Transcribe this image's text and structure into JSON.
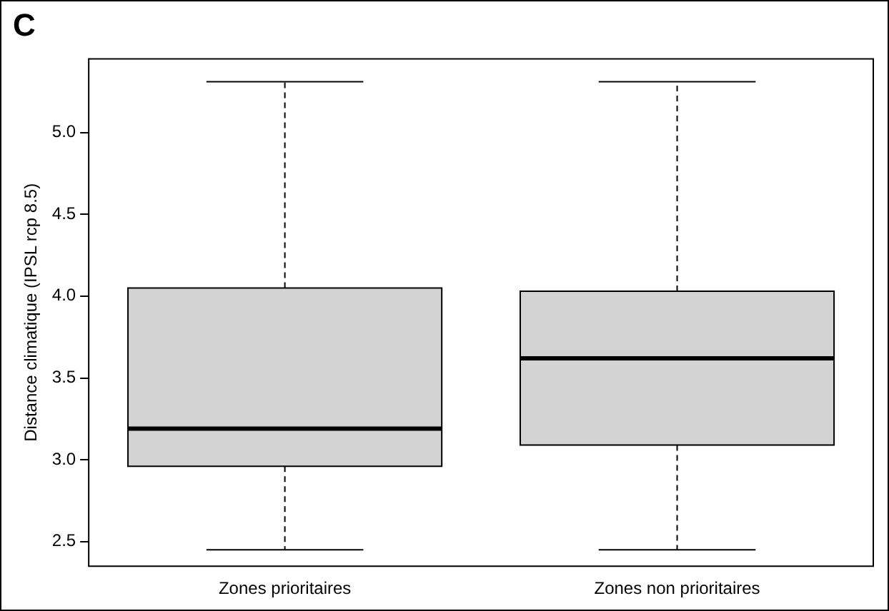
{
  "chart_data": {
    "type": "box",
    "annotations": [
      "C"
    ],
    "ylabel": "Distance climatique (IPSL rcp 8.5)",
    "categories": [
      "Zones prioritaires",
      "Zones non prioritaires"
    ],
    "color": "#d3d3d3",
    "boxes": [
      {
        "low": 2.45,
        "q1": 2.96,
        "median": 3.19,
        "q3": 4.05,
        "high": 5.31
      },
      {
        "low": 2.45,
        "q1": 3.09,
        "median": 3.62,
        "q3": 4.03,
        "high": 5.31
      }
    ],
    "ylim": [
      2.35,
      5.45
    ],
    "yticks": [
      {
        "value": 2.5,
        "label": "2.5"
      },
      {
        "value": 3,
        "label": "3.0"
      },
      {
        "value": 3.5,
        "label": "3.5"
      },
      {
        "value": 4,
        "label": "4.0"
      },
      {
        "value": 4.5,
        "label": "4.5"
      },
      {
        "value": 5,
        "label": "5.0"
      }
    ],
    "grid": false
  }
}
